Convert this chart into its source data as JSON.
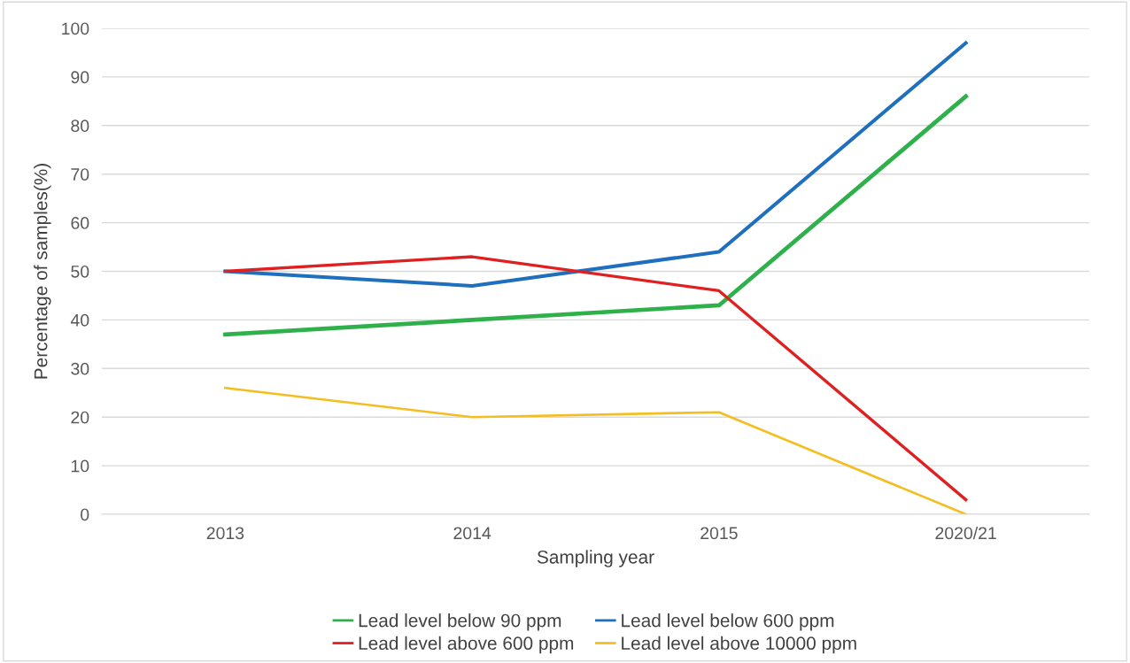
{
  "chart_data": {
    "type": "line",
    "xlabel": "Sampling year",
    "ylabel": "Percentage of samples(%)",
    "categories": [
      "2013",
      "2014",
      "2015",
      "2020/21"
    ],
    "series": [
      {
        "name": "Lead level below 90 ppm",
        "color": "#2eb04a",
        "values": [
          37,
          40,
          43,
          86
        ]
      },
      {
        "name": "Lead level below 600 ppm",
        "color": "#1f6fbf",
        "values": [
          50,
          47,
          54,
          97
        ]
      },
      {
        "name": "Lead level above 600 ppm",
        "color": "#e02020",
        "values": [
          50,
          53,
          46,
          3
        ]
      },
      {
        "name": "Lead level above 10000 ppm",
        "color": "#f5be20",
        "values": [
          26,
          20,
          21,
          0
        ]
      }
    ],
    "ylim": [
      0,
      100
    ],
    "yticks": [
      0,
      10,
      20,
      30,
      40,
      50,
      60,
      70,
      80,
      90,
      100
    ],
    "grid": "y",
    "legend": "bottom",
    "marker": "none",
    "line_style": "solid"
  }
}
